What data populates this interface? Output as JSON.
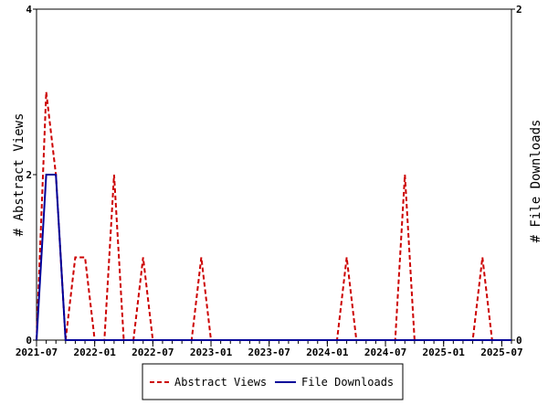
{
  "chart_data": {
    "type": "line",
    "xlabel": "",
    "ylabel_left": "# Abstract Views",
    "ylabel_right": "# File Downloads",
    "ylim_left": [
      0,
      4
    ],
    "ylim_right": [
      0,
      2
    ],
    "xlim": [
      "2021-07",
      "2025-08"
    ],
    "x_tick_labels": [
      "2021-07",
      "2022-01",
      "2022-07",
      "2023-01",
      "2023-07",
      "2024-01",
      "2024-07",
      "2025-01",
      "2025-07"
    ],
    "y_left_ticks": [
      "0",
      "2",
      "4"
    ],
    "y_right_ticks": [
      "0",
      "2"
    ],
    "grid": false,
    "legend_placement": "bottom",
    "series": [
      {
        "name": "Abstract Views",
        "axis": "left",
        "color": "#cc0000",
        "style": "dashed",
        "points": [
          [
            "2021-07",
            0
          ],
          [
            "2021-08",
            3
          ],
          [
            "2021-09",
            2
          ],
          [
            "2021-10",
            0
          ],
          [
            "2021-11",
            1
          ],
          [
            "2021-12",
            1
          ],
          [
            "2022-01",
            0
          ],
          [
            "2022-02",
            0
          ],
          [
            "2022-03",
            2
          ],
          [
            "2022-04",
            0
          ],
          [
            "2022-05",
            0
          ],
          [
            "2022-06",
            1
          ],
          [
            "2022-07",
            0
          ],
          [
            "2022-11",
            0
          ],
          [
            "2022-12",
            1
          ],
          [
            "2023-01",
            0
          ],
          [
            "2024-02",
            0
          ],
          [
            "2024-03",
            1
          ],
          [
            "2024-04",
            0
          ],
          [
            "2024-08",
            0
          ],
          [
            "2024-09",
            2
          ],
          [
            "2024-10",
            0
          ],
          [
            "2025-04",
            0
          ],
          [
            "2025-05",
            1
          ],
          [
            "2025-06",
            0
          ],
          [
            "2025-08",
            0
          ]
        ]
      },
      {
        "name": "File Downloads",
        "axis": "right",
        "color": "#000099",
        "style": "solid",
        "points": [
          [
            "2021-07",
            0
          ],
          [
            "2021-08",
            1
          ],
          [
            "2021-09",
            1
          ],
          [
            "2021-10",
            0
          ],
          [
            "2025-08",
            0
          ]
        ]
      }
    ]
  }
}
